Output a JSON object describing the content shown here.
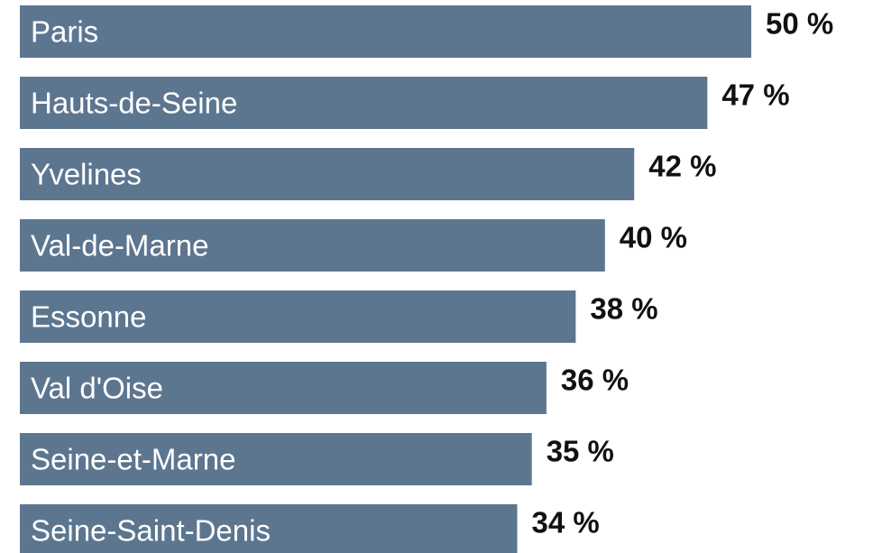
{
  "chart_data": {
    "type": "hbar",
    "categories": [
      "Paris",
      "Hauts-de-Seine",
      "Yvelines",
      "Val-de-Marne",
      "Essonne",
      "Val d'Oise",
      "Seine-et-Marne",
      "Seine-Saint-Denis"
    ],
    "values": [
      50,
      47,
      42,
      40,
      38,
      36,
      35,
      34
    ],
    "value_labels": [
      "50 %",
      "47 %",
      "42 %",
      "40 %",
      "38 %",
      "36 %",
      "35 %",
      "34 %"
    ],
    "color": "#5d7690",
    "xlim": [
      0,
      50
    ]
  }
}
